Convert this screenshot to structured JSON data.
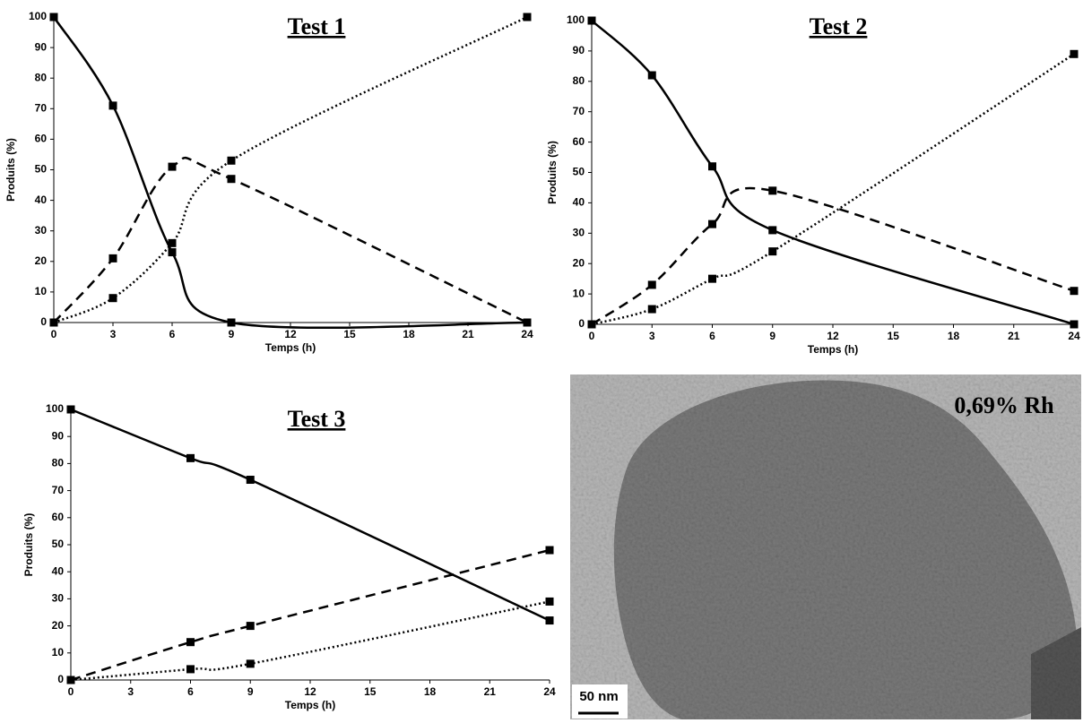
{
  "chart_data": [
    {
      "type": "line",
      "title": "Test 1",
      "xlabel": "Temps (h)",
      "ylabel": "Produits (%)",
      "x": [
        0,
        3,
        6,
        9,
        24
      ],
      "xlim": [
        0,
        24
      ],
      "xticks": [
        0,
        3,
        6,
        9,
        12,
        15,
        18,
        21,
        24
      ],
      "ylim": [
        0,
        100
      ],
      "yticks": [
        0,
        10,
        20,
        30,
        40,
        50,
        60,
        70,
        80,
        90,
        100
      ],
      "series": [
        {
          "color": "#000000",
          "style": "solid",
          "values": [
            100,
            71,
            23,
            0,
            0
          ]
        },
        {
          "color": "#000000",
          "style": "dashed",
          "values": [
            0,
            21,
            51,
            47,
            0
          ]
        },
        {
          "color": "#000000",
          "style": "dotted",
          "values": [
            0,
            8,
            26,
            53,
            100
          ]
        }
      ]
    },
    {
      "type": "line",
      "title": "Test 2",
      "xlabel": "Temps (h)",
      "ylabel": "Produits (%)",
      "x": [
        0,
        3,
        6,
        9,
        24
      ],
      "xlim": [
        0,
        24
      ],
      "xticks": [
        0,
        3,
        6,
        9,
        12,
        15,
        18,
        21,
        24
      ],
      "ylim": [
        0,
        100
      ],
      "yticks": [
        0,
        10,
        20,
        30,
        40,
        50,
        60,
        70,
        80,
        90,
        100
      ],
      "series": [
        {
          "color": "#000000",
          "style": "solid",
          "values": [
            100,
            82,
            52,
            31,
            0
          ]
        },
        {
          "color": "#000000",
          "style": "dashed",
          "values": [
            0,
            13,
            33,
            44,
            11
          ]
        },
        {
          "color": "#000000",
          "style": "dotted",
          "values": [
            0,
            5,
            15,
            24,
            89
          ]
        }
      ]
    },
    {
      "type": "line",
      "title": "Test 3",
      "xlabel": "Temps (h)",
      "ylabel": "Produits (%)",
      "x": [
        0,
        6,
        9,
        24
      ],
      "xlim": [
        0,
        24
      ],
      "xticks": [
        0,
        3,
        6,
        9,
        12,
        15,
        18,
        21,
        24
      ],
      "ylim": [
        0,
        100
      ],
      "yticks": [
        0,
        10,
        20,
        30,
        40,
        50,
        60,
        70,
        80,
        90,
        100
      ],
      "series": [
        {
          "color": "#000000",
          "style": "solid",
          "values": [
            100,
            82,
            74,
            22
          ]
        },
        {
          "color": "#000000",
          "style": "dashed",
          "values": [
            0,
            14,
            20,
            48
          ]
        },
        {
          "color": "#000000",
          "style": "dotted",
          "values": [
            0,
            4,
            6,
            29
          ]
        }
      ]
    }
  ],
  "image": {
    "label": "0,69% Rh",
    "scale_bar": "50 nm"
  }
}
